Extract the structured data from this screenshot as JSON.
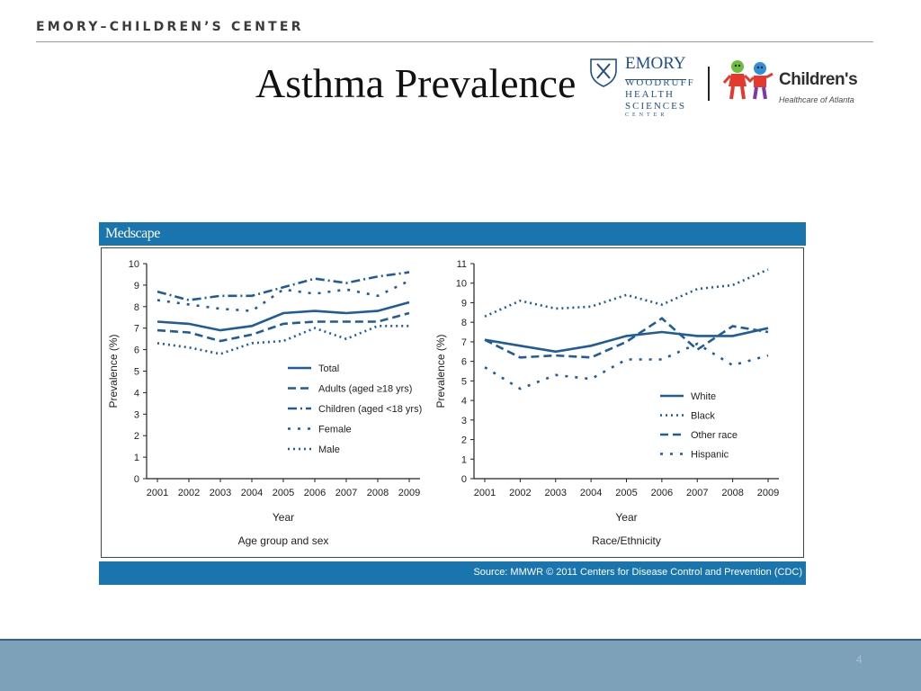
{
  "header": {
    "brand": "EMORY–CHILDREN’S CENTER",
    "title": "Asthma Prevalence",
    "emory_logo": {
      "name": "EMORY",
      "lines": [
        "WOODRUFF",
        "HEALTH",
        "SCIENCES"
      ],
      "footer": "CENTER",
      "color": "#1f4f8b"
    },
    "childrens_logo": {
      "name": "Children's",
      "tagline": "Healthcare of Atlanta"
    }
  },
  "figure": {
    "brand": "Medscape",
    "source": "Source: MMWR © 2011 Centers for Disease Control and Prevention (CDC)",
    "header_color": "#1a74ad",
    "line_color": "#1f5c99"
  },
  "footer": {
    "page_number": "4",
    "bar_color": "#7ea1ba"
  },
  "chart_data": [
    {
      "type": "line",
      "x": [
        "2001",
        "2002",
        "2003",
        "2004",
        "2005",
        "2006",
        "2007",
        "2008",
        "2009"
      ],
      "xlabel": "Year",
      "ylabel": "Prevalence (%)",
      "subtitle": "Age group and sex",
      "ylim": [
        0,
        10
      ],
      "yticks": [
        "0",
        "1",
        "2",
        "3",
        "4",
        "5",
        "6",
        "7",
        "8",
        "9",
        "10"
      ],
      "legend_position": "center-right",
      "series": [
        {
          "name": "Total",
          "style": "solid",
          "values": [
            7.3,
            7.2,
            6.9,
            7.1,
            7.7,
            7.8,
            7.7,
            7.8,
            8.2
          ]
        },
        {
          "name": "Adults (aged ≥18 yrs)",
          "style": "dashed",
          "values": [
            6.9,
            6.8,
            6.4,
            6.7,
            7.2,
            7.3,
            7.3,
            7.3,
            7.7
          ]
        },
        {
          "name": "Children (aged <18 yrs)",
          "style": "dashdot",
          "values": [
            8.7,
            8.3,
            8.5,
            8.5,
            8.9,
            9.3,
            9.1,
            9.4,
            9.6
          ]
        },
        {
          "name": "Female",
          "style": "dotted-sparse",
          "values": [
            8.3,
            8.1,
            7.9,
            7.8,
            8.8,
            8.6,
            8.8,
            8.5,
            9.2
          ]
        },
        {
          "name": "Male",
          "style": "dotted",
          "values": [
            6.3,
            6.1,
            5.8,
            6.3,
            6.4,
            7.0,
            6.5,
            7.1,
            7.1
          ]
        }
      ]
    },
    {
      "type": "line",
      "x": [
        "2001",
        "2002",
        "2003",
        "2004",
        "2005",
        "2006",
        "2007",
        "2008",
        "2009"
      ],
      "xlabel": "Year",
      "ylabel": "Prevalence (%)",
      "subtitle": "Race/Ethnicity",
      "ylim": [
        0,
        11
      ],
      "yticks": [
        "0",
        "1",
        "2",
        "3",
        "4",
        "5",
        "6",
        "7",
        "8",
        "9",
        "10",
        "11"
      ],
      "legend_position": "bottom-right",
      "series": [
        {
          "name": "White",
          "style": "solid",
          "values": [
            7.1,
            6.8,
            6.5,
            6.8,
            7.3,
            7.5,
            7.3,
            7.3,
            7.7
          ]
        },
        {
          "name": "Black",
          "style": "dotted",
          "values": [
            8.3,
            9.1,
            8.7,
            8.8,
            9.4,
            8.9,
            9.7,
            9.9,
            10.7
          ]
        },
        {
          "name": "Other race",
          "style": "dashed",
          "values": [
            7.1,
            6.2,
            6.3,
            6.2,
            7.0,
            8.2,
            6.6,
            7.8,
            7.5
          ]
        },
        {
          "name": "Hispanic",
          "style": "dotted-sparse",
          "values": [
            5.7,
            4.6,
            5.3,
            5.1,
            6.1,
            6.1,
            6.9,
            5.8,
            6.3
          ]
        }
      ]
    }
  ]
}
